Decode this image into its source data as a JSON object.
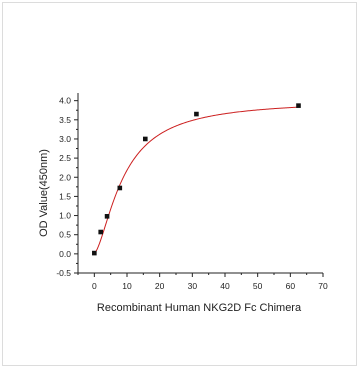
{
  "chart_data": {
    "type": "scatter",
    "title": "",
    "xlabel": "Recombinant Human NKG2D Fc Chimera",
    "ylabel": "OD Value(450nm)",
    "xlim": [
      -5,
      70
    ],
    "ylim": [
      -0.5,
      4.2
    ],
    "x_ticks": [
      "0",
      "10",
      "20",
      "30",
      "40",
      "50",
      "60",
      "70"
    ],
    "y_ticks": [
      "-0.5",
      "0.0",
      "0.5",
      "1.0",
      "1.5",
      "2.0",
      "2.5",
      "3.0",
      "3.5",
      "4.0"
    ],
    "grid": false,
    "legend": "none",
    "series": [
      {
        "x": [
          0,
          1.95,
          3.9,
          7.8,
          15.6,
          31.25,
          62.5
        ],
        "y": [
          0.02,
          0.57,
          0.98,
          1.72,
          3.0,
          3.65,
          3.87
        ],
        "marker_color": "#111111"
      }
    ],
    "fit_curve": {
      "type": "four-parameter logistic",
      "color": "#cc1f1f",
      "params": {
        "A": 0.02,
        "D": 4.02,
        "C": 9.0,
        "B": 1.55
      }
    }
  }
}
